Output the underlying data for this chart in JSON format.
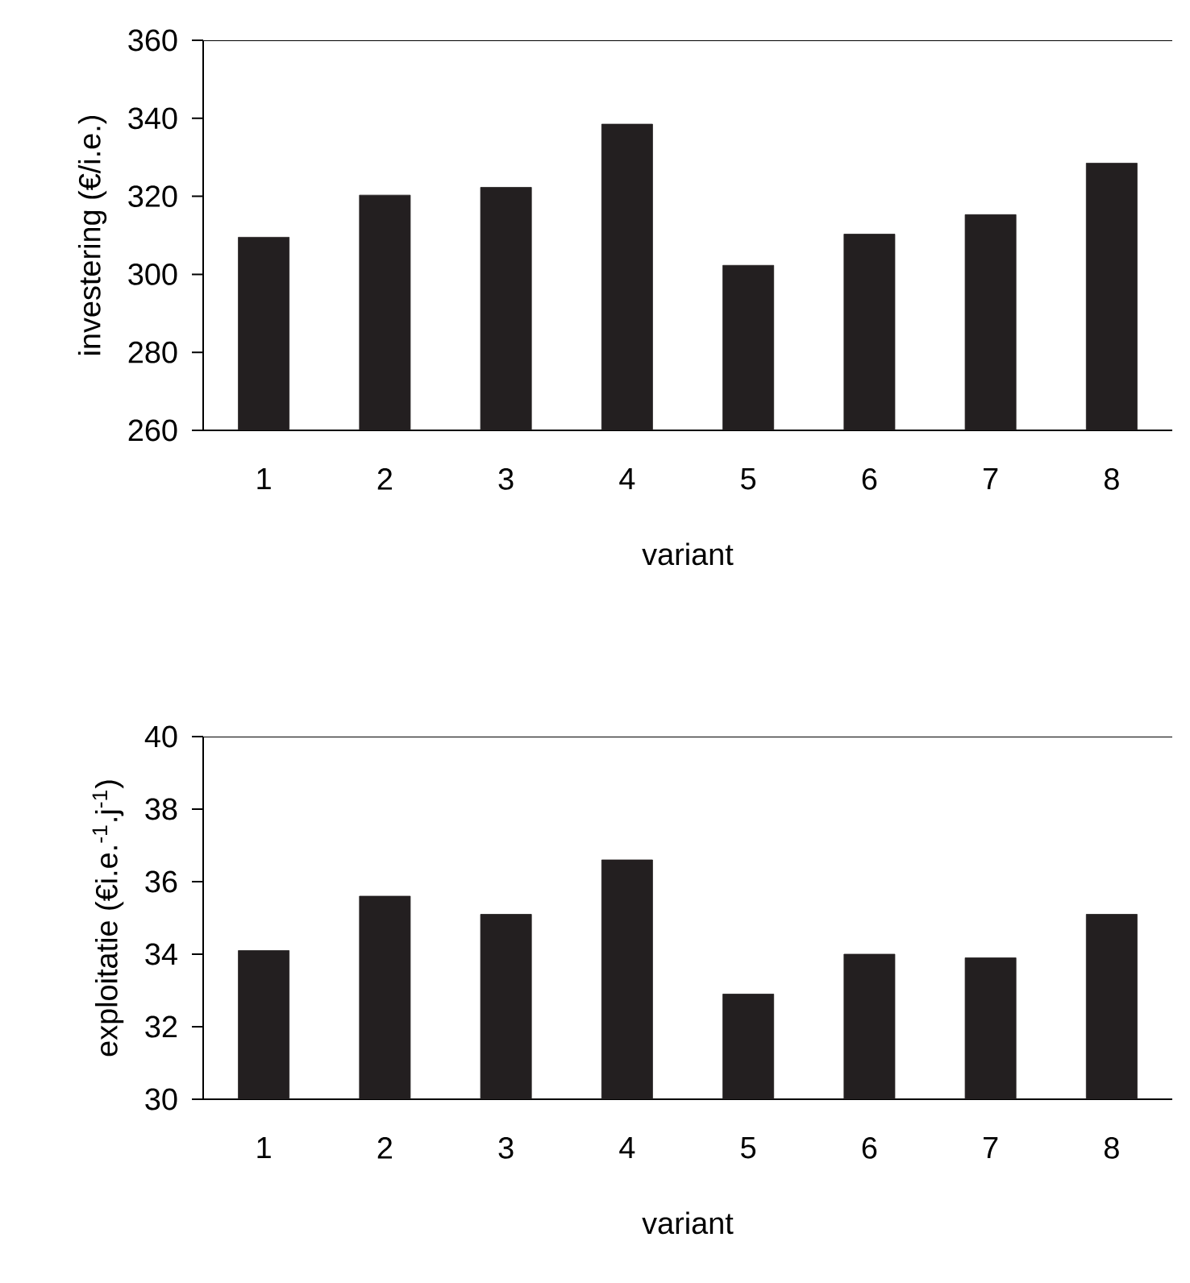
{
  "chart_data": [
    {
      "type": "bar",
      "categories": [
        "1",
        "2",
        "3",
        "4",
        "5",
        "6",
        "7",
        "8"
      ],
      "values": [
        309.5,
        320.3,
        322.3,
        338.5,
        302.3,
        310.3,
        315.3,
        328.5
      ],
      "color": "#231f20",
      "ylim": [
        260,
        360
      ],
      "yticks": [
        260,
        280,
        300,
        320,
        340,
        360
      ],
      "xlabel": "variant",
      "ylabel": "investering (€/i.e.)"
    },
    {
      "type": "bar",
      "categories": [
        "1",
        "2",
        "3",
        "4",
        "5",
        "6",
        "7",
        "8"
      ],
      "values": [
        34.1,
        35.6,
        35.1,
        36.6,
        32.9,
        34.0,
        33.9,
        35.1
      ],
      "color": "#231f20",
      "ylim": [
        30,
        40
      ],
      "yticks": [
        30,
        32,
        34,
        36,
        38,
        40
      ],
      "xlabel": "variant",
      "ylabel": "exploitatie (€i.e.$^{-1}$.j$^{-1}$)"
    }
  ]
}
